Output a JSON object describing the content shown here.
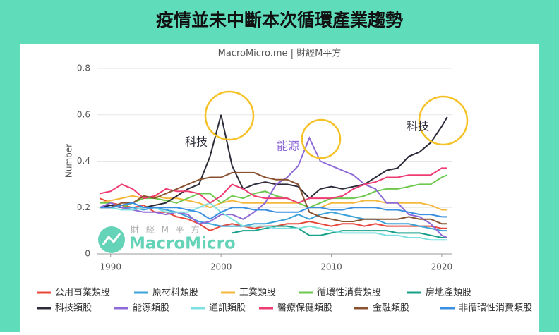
{
  "chart_data": {
    "type": "line",
    "title": "疫情並未中斷本次循環產業趨勢",
    "subtitle": "MacroMicro.me | 財經M平方",
    "y_label": "Number",
    "watermark": [
      "財 經 M 平 方",
      "MacroMicro"
    ],
    "annotations": [
      {
        "text": "科技",
        "color": "#2b2b3a"
      },
      {
        "text": "能源",
        "color": "#8e6ad8"
      },
      {
        "text": "科技",
        "color": "#2b2b3a"
      }
    ],
    "x": [
      1989,
      1990,
      1991,
      1992,
      1993,
      1994,
      1995,
      1996,
      1997,
      1998,
      1999,
      2000,
      2001,
      2002,
      2003,
      2004,
      2005,
      2006,
      2007,
      2008,
      2009,
      2010,
      2011,
      2012,
      2013,
      2014,
      2015,
      2016,
      2017,
      2018,
      2019,
      2020,
      2020.5
    ],
    "xlim": [
      1988.8,
      2020.9
    ],
    "xticks": [
      1990,
      2000,
      2010,
      2020
    ],
    "ylim": [
      0,
      0.8
    ],
    "yticks": [
      0,
      0.2,
      0.4,
      0.6,
      0.8
    ],
    "series": [
      {
        "name": "公用事業類股",
        "color": "#e8483b",
        "values": [
          0.24,
          0.22,
          0.21,
          0.2,
          0.21,
          0.18,
          0.18,
          0.16,
          0.15,
          0.13,
          0.1,
          0.12,
          0.13,
          0.12,
          0.11,
          0.12,
          0.12,
          0.13,
          0.13,
          0.14,
          0.13,
          0.12,
          0.13,
          0.13,
          0.12,
          0.13,
          0.12,
          0.12,
          0.12,
          0.12,
          0.12,
          0.11,
          0.11
        ]
      },
      {
        "name": "原材料類股",
        "color": "#3ba3d8",
        "values": [
          0.2,
          0.21,
          0.2,
          0.2,
          0.19,
          0.2,
          0.19,
          0.18,
          0.16,
          0.14,
          0.13,
          0.12,
          0.12,
          0.12,
          0.13,
          0.13,
          0.14,
          0.15,
          0.17,
          0.15,
          0.17,
          0.18,
          0.17,
          0.16,
          0.15,
          0.15,
          0.13,
          0.13,
          0.13,
          0.12,
          0.11,
          0.1,
          0.1
        ]
      },
      {
        "name": "工業類股",
        "color": "#f5b83d",
        "values": [
          0.22,
          0.23,
          0.24,
          0.25,
          0.24,
          0.25,
          0.24,
          0.24,
          0.23,
          0.22,
          0.2,
          0.22,
          0.23,
          0.22,
          0.22,
          0.22,
          0.22,
          0.22,
          0.22,
          0.2,
          0.2,
          0.22,
          0.22,
          0.22,
          0.23,
          0.23,
          0.22,
          0.22,
          0.22,
          0.22,
          0.21,
          0.19,
          0.19
        ]
      },
      {
        "name": "循環性消費類股",
        "color": "#6dc84f",
        "values": [
          0.22,
          0.22,
          0.2,
          0.22,
          0.24,
          0.24,
          0.23,
          0.22,
          0.24,
          0.26,
          0.26,
          0.22,
          0.25,
          0.24,
          0.26,
          0.27,
          0.25,
          0.24,
          0.22,
          0.2,
          0.22,
          0.24,
          0.24,
          0.24,
          0.25,
          0.27,
          0.28,
          0.28,
          0.29,
          0.3,
          0.3,
          0.33,
          0.34
        ]
      },
      {
        "name": "房地產類股",
        "color": "#19a08a",
        "values": [
          null,
          null,
          null,
          null,
          null,
          null,
          null,
          null,
          null,
          null,
          null,
          null,
          0.09,
          0.1,
          0.1,
          0.11,
          0.12,
          0.12,
          0.11,
          0.08,
          0.08,
          0.09,
          0.1,
          0.1,
          0.1,
          0.1,
          0.1,
          0.09,
          0.09,
          0.09,
          0.08,
          0.07,
          0.07
        ]
      },
      {
        "name": "科技類股",
        "color": "#2b2b3a",
        "values": [
          0.2,
          0.21,
          0.2,
          0.19,
          0.2,
          0.21,
          0.22,
          0.25,
          0.28,
          0.3,
          0.42,
          0.6,
          0.38,
          0.28,
          0.3,
          0.31,
          0.3,
          0.3,
          0.29,
          0.24,
          0.28,
          0.29,
          0.28,
          0.29,
          0.3,
          0.33,
          0.36,
          0.37,
          0.42,
          0.44,
          0.48,
          0.55,
          0.59
        ]
      },
      {
        "name": "能源類股",
        "color": "#8e6ad8",
        "values": [
          0.2,
          0.22,
          0.2,
          0.19,
          0.18,
          0.18,
          0.17,
          0.18,
          0.17,
          0.13,
          0.14,
          0.17,
          0.17,
          0.15,
          0.18,
          0.22,
          0.3,
          0.33,
          0.38,
          0.5,
          0.4,
          0.38,
          0.36,
          0.34,
          0.3,
          0.28,
          0.22,
          0.22,
          0.17,
          0.16,
          0.13,
          0.08,
          0.07
        ]
      },
      {
        "name": "通訊類股",
        "color": "#7ee0e0",
        "values": [
          0.2,
          0.2,
          0.19,
          0.19,
          0.2,
          0.2,
          0.18,
          0.18,
          0.18,
          0.2,
          0.22,
          0.18,
          0.15,
          0.12,
          0.12,
          0.12,
          0.11,
          0.11,
          0.11,
          0.12,
          0.11,
          0.1,
          0.09,
          0.09,
          0.09,
          0.09,
          0.08,
          0.08,
          0.07,
          0.07,
          0.06,
          0.06,
          0.06
        ]
      },
      {
        "name": "醫療保健類股",
        "color": "#ee3c72",
        "values": [
          0.26,
          0.27,
          0.3,
          0.28,
          0.24,
          0.25,
          0.28,
          0.27,
          0.27,
          0.26,
          0.22,
          0.25,
          0.3,
          0.28,
          0.25,
          0.24,
          0.24,
          0.24,
          0.22,
          0.24,
          0.24,
          0.24,
          0.25,
          0.28,
          0.3,
          0.31,
          0.33,
          0.33,
          0.34,
          0.34,
          0.34,
          0.37,
          0.37
        ]
      },
      {
        "name": "金融類股",
        "color": "#8a5230",
        "values": [
          0.2,
          0.2,
          0.22,
          0.22,
          0.25,
          0.24,
          0.26,
          0.28,
          0.3,
          0.32,
          0.33,
          0.33,
          0.35,
          0.35,
          0.35,
          0.33,
          0.32,
          0.32,
          0.3,
          0.18,
          0.16,
          0.15,
          0.14,
          0.14,
          0.15,
          0.15,
          0.15,
          0.15,
          0.16,
          0.15,
          0.15,
          0.13,
          0.13
        ]
      },
      {
        "name": "非循環性消費類股",
        "color": "#3a8fe0",
        "values": [
          0.2,
          0.2,
          0.21,
          0.22,
          0.2,
          0.2,
          0.2,
          0.2,
          0.19,
          0.18,
          0.15,
          0.18,
          0.2,
          0.2,
          0.19,
          0.19,
          0.18,
          0.18,
          0.18,
          0.2,
          0.2,
          0.19,
          0.19,
          0.2,
          0.2,
          0.2,
          0.19,
          0.19,
          0.18,
          0.17,
          0.17,
          0.16,
          0.16
        ]
      }
    ]
  }
}
